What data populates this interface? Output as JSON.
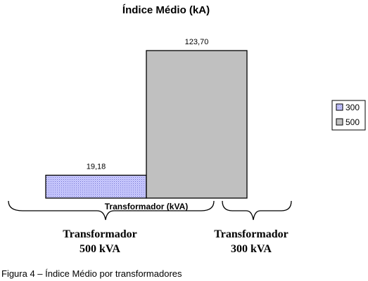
{
  "chart_data": {
    "type": "bar",
    "title": "Índice Médio (kA)",
    "xlabel": "Transformador (kVA)",
    "ylabel": "",
    "ylim": [
      0,
      123.7
    ],
    "series": [
      {
        "name": "300",
        "value": 19.18,
        "label": "19,18",
        "color": "#ccccff",
        "pattern": "dotted"
      },
      {
        "name": "500",
        "value": 123.7,
        "label": "123,70",
        "color": "#c0c0c0",
        "pattern": "solid"
      }
    ],
    "legend": {
      "position": "right",
      "entries": [
        "300",
        "500"
      ]
    }
  },
  "annotations": {
    "left_brace_line1": "Transformador",
    "left_brace_line2": "500 kVA",
    "right_brace_line1": "Transformador",
    "right_brace_line2": "300 kVA"
  },
  "caption": "Figura 4 – Índice Médio por transformadores"
}
